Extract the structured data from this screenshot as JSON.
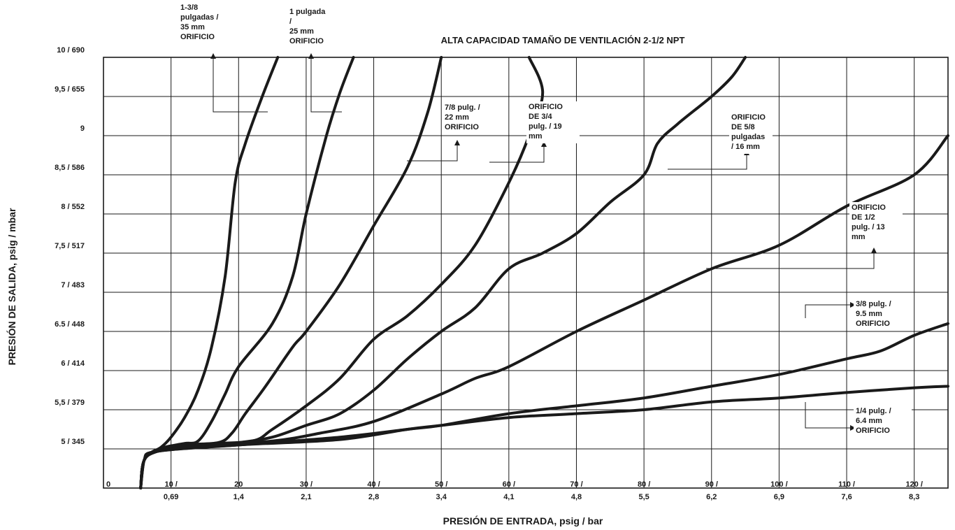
{
  "chart_data": {
    "type": "line",
    "title": "ALTA CAPACIDAD TAMAÑO DE VENTILACIÓN 2-1/2 NPT",
    "xlabel": "PRESIÓN DE ENTRADA, psig / bar",
    "ylabel": "PRESIÓN DE SALIDA, psig / mbar",
    "xlim": [
      0,
      125
    ],
    "ylim": [
      4.5,
      10
    ],
    "grid": true,
    "x_ticks": [
      {
        "value": 0,
        "line1": "0",
        "line2": ""
      },
      {
        "value": 10,
        "line1": "10 /",
        "line2": "0,69"
      },
      {
        "value": 20,
        "line1": "20",
        "line2": "1,4"
      },
      {
        "value": 30,
        "line1": "30 /",
        "line2": "2,1"
      },
      {
        "value": 40,
        "line1": "40 /",
        "line2": "2,8"
      },
      {
        "value": 50,
        "line1": "50 /",
        "line2": "3,4"
      },
      {
        "value": 60,
        "line1": "60 /",
        "line2": "4,1"
      },
      {
        "value": 70,
        "line1": "70 /",
        "line2": "4,8"
      },
      {
        "value": 80,
        "line1": "80 /",
        "line2": "5,5"
      },
      {
        "value": 90,
        "line1": "90 /",
        "line2": "6,2"
      },
      {
        "value": 100,
        "line1": "100 /",
        "line2": "6,9"
      },
      {
        "value": 110,
        "line1": "110 /",
        "line2": "7,6"
      },
      {
        "value": 120,
        "line1": "120 /",
        "line2": "8,3"
      }
    ],
    "y_ticks": [
      {
        "value": 5,
        "label": "5 / 345"
      },
      {
        "value": 5.5,
        "label": "5,5 / 379"
      },
      {
        "value": 6,
        "label": "6 / 414"
      },
      {
        "value": 6.5,
        "label": "6.5 / 448"
      },
      {
        "value": 7,
        "label": "7 / 483"
      },
      {
        "value": 7.5,
        "label": "7,5 / 517"
      },
      {
        "value": 8,
        "label": "8 / 552"
      },
      {
        "value": 8.5,
        "label": "8,5 / 586"
      },
      {
        "value": 9,
        "label": "9"
      },
      {
        "value": 9.5,
        "label": "9,5 / 655"
      },
      {
        "value": 10,
        "label": "10 / 690"
      }
    ],
    "series": [
      {
        "name": "1-3/8 pulgadas / 35 mm ORIFICIO",
        "points": [
          [
            5.5,
            4.5
          ],
          [
            6,
            4.85
          ],
          [
            7,
            4.95
          ],
          [
            8.5,
            5.02
          ],
          [
            10,
            5.15
          ],
          [
            12,
            5.4
          ],
          [
            14,
            5.75
          ],
          [
            16,
            6.3
          ],
          [
            18,
            7.2
          ],
          [
            19.5,
            8.4
          ],
          [
            21,
            8.9
          ],
          [
            23.5,
            9.5
          ],
          [
            25.8,
            10
          ]
        ]
      },
      {
        "name": "1 pulgada / 25 mm ORIFICIO",
        "points": [
          [
            5.5,
            4.5
          ],
          [
            6,
            4.85
          ],
          [
            7,
            4.95
          ],
          [
            9,
            5.02
          ],
          [
            12,
            5.07
          ],
          [
            14,
            5.1
          ],
          [
            16,
            5.35
          ],
          [
            18,
            5.7
          ],
          [
            20,
            6.05
          ],
          [
            25,
            6.6
          ],
          [
            28,
            7.2
          ],
          [
            30,
            8
          ],
          [
            33,
            9
          ],
          [
            35,
            9.55
          ],
          [
            37,
            10
          ]
        ]
      },
      {
        "name": "7/8 pulg. / 22 mm ORIFICIO",
        "points": [
          [
            5.5,
            4.5
          ],
          [
            6,
            4.85
          ],
          [
            8,
            4.97
          ],
          [
            12,
            5.05
          ],
          [
            17,
            5.08
          ],
          [
            19,
            5.2
          ],
          [
            21,
            5.45
          ],
          [
            24,
            5.8
          ],
          [
            28,
            6.3
          ],
          [
            30,
            6.5
          ],
          [
            35,
            7.1
          ],
          [
            40,
            7.85
          ],
          [
            45,
            8.6
          ],
          [
            48,
            9.3
          ],
          [
            50,
            10
          ]
        ]
      },
      {
        "name": "ORIFICIO DE 3/4 pulg. / 19 mm",
        "points": [
          [
            5.5,
            4.5
          ],
          [
            6,
            4.85
          ],
          [
            8,
            4.97
          ],
          [
            15,
            5.06
          ],
          [
            22,
            5.1
          ],
          [
            25,
            5.25
          ],
          [
            30,
            5.55
          ],
          [
            35,
            5.9
          ],
          [
            40,
            6.4
          ],
          [
            45,
            6.7
          ],
          [
            50,
            7.1
          ],
          [
            55,
            7.6
          ],
          [
            60,
            8.4
          ],
          [
            63,
            9
          ],
          [
            65,
            9.55
          ],
          [
            63,
            10
          ]
        ]
      },
      {
        "name": "ORIFICIO DE 5/8 pulgadas / 16 mm",
        "points": [
          [
            5.5,
            4.5
          ],
          [
            6,
            4.85
          ],
          [
            8,
            4.97
          ],
          [
            15,
            5.05
          ],
          [
            20,
            5.08
          ],
          [
            25,
            5.15
          ],
          [
            30,
            5.3
          ],
          [
            35,
            5.45
          ],
          [
            40,
            5.75
          ],
          [
            45,
            6.15
          ],
          [
            50,
            6.5
          ],
          [
            55,
            6.8
          ],
          [
            60,
            7.3
          ],
          [
            65,
            7.5
          ],
          [
            70,
            7.75
          ],
          [
            75,
            8.15
          ],
          [
            80,
            8.5
          ],
          [
            82,
            8.9
          ],
          [
            85,
            9.15
          ],
          [
            90,
            9.5
          ],
          [
            93,
            9.75
          ],
          [
            95,
            10
          ]
        ]
      },
      {
        "name": "ORIFICIO DE 1/2 pulg. / 13 mm",
        "points": [
          [
            5.5,
            4.5
          ],
          [
            6,
            4.85
          ],
          [
            8,
            4.97
          ],
          [
            15,
            5.05
          ],
          [
            25,
            5.1
          ],
          [
            32,
            5.2
          ],
          [
            40,
            5.35
          ],
          [
            50,
            5.7
          ],
          [
            55,
            5.9
          ],
          [
            60,
            6.05
          ],
          [
            70,
            6.5
          ],
          [
            80,
            6.9
          ],
          [
            90,
            7.3
          ],
          [
            100,
            7.6
          ],
          [
            110,
            8.1
          ],
          [
            120,
            8.5
          ],
          [
            125,
            9
          ]
        ]
      },
      {
        "name": "3/8 pulg. / 9.5 mm ORIFICIO",
        "points": [
          [
            5.5,
            4.5
          ],
          [
            6,
            4.85
          ],
          [
            8,
            4.97
          ],
          [
            20,
            5.05
          ],
          [
            35,
            5.15
          ],
          [
            45,
            5.25
          ],
          [
            50,
            5.3
          ],
          [
            60,
            5.45
          ],
          [
            70,
            5.55
          ],
          [
            80,
            5.65
          ],
          [
            90,
            5.8
          ],
          [
            100,
            5.95
          ],
          [
            110,
            6.15
          ],
          [
            115,
            6.25
          ],
          [
            120,
            6.45
          ],
          [
            125,
            6.6
          ]
        ]
      },
      {
        "name": "1/4 pulg. / 6.4 mm ORIFICIO",
        "points": [
          [
            5.5,
            4.5
          ],
          [
            6,
            4.85
          ],
          [
            8,
            4.97
          ],
          [
            20,
            5.05
          ],
          [
            35,
            5.12
          ],
          [
            45,
            5.25
          ],
          [
            50,
            5.3
          ],
          [
            60,
            5.4
          ],
          [
            70,
            5.45
          ],
          [
            80,
            5.5
          ],
          [
            90,
            5.6
          ],
          [
            100,
            5.65
          ],
          [
            110,
            5.72
          ],
          [
            120,
            5.78
          ],
          [
            125,
            5.8
          ]
        ]
      }
    ],
    "annotations": [
      {
        "lines": [
          "1-3/8",
          "pulgadas /",
          "35 mm",
          "ORIFICIO"
        ]
      },
      {
        "lines": [
          "1 pulgada",
          "/",
          "25 mm",
          "ORIFICIO"
        ]
      },
      {
        "lines": [
          "7/8 pulg. /",
          "22 mm",
          "ORIFICIO"
        ]
      },
      {
        "lines": [
          "ORIFICIO",
          "DE 3/4",
          "pulg. / 19",
          "mm"
        ]
      },
      {
        "lines": [
          "ORIFICIO",
          "DE 5/8",
          "pulgadas",
          "/ 16 mm"
        ]
      },
      {
        "lines": [
          "ORIFICIO",
          "DE 1/2",
          "pulg. / 13",
          "mm"
        ]
      },
      {
        "lines": [
          "3/8 pulg. /",
          "9.5 mm",
          "ORIFICIO"
        ]
      },
      {
        "lines": [
          "1/4 pulg. /",
          "6.4 mm",
          "ORIFICIO"
        ]
      }
    ]
  }
}
